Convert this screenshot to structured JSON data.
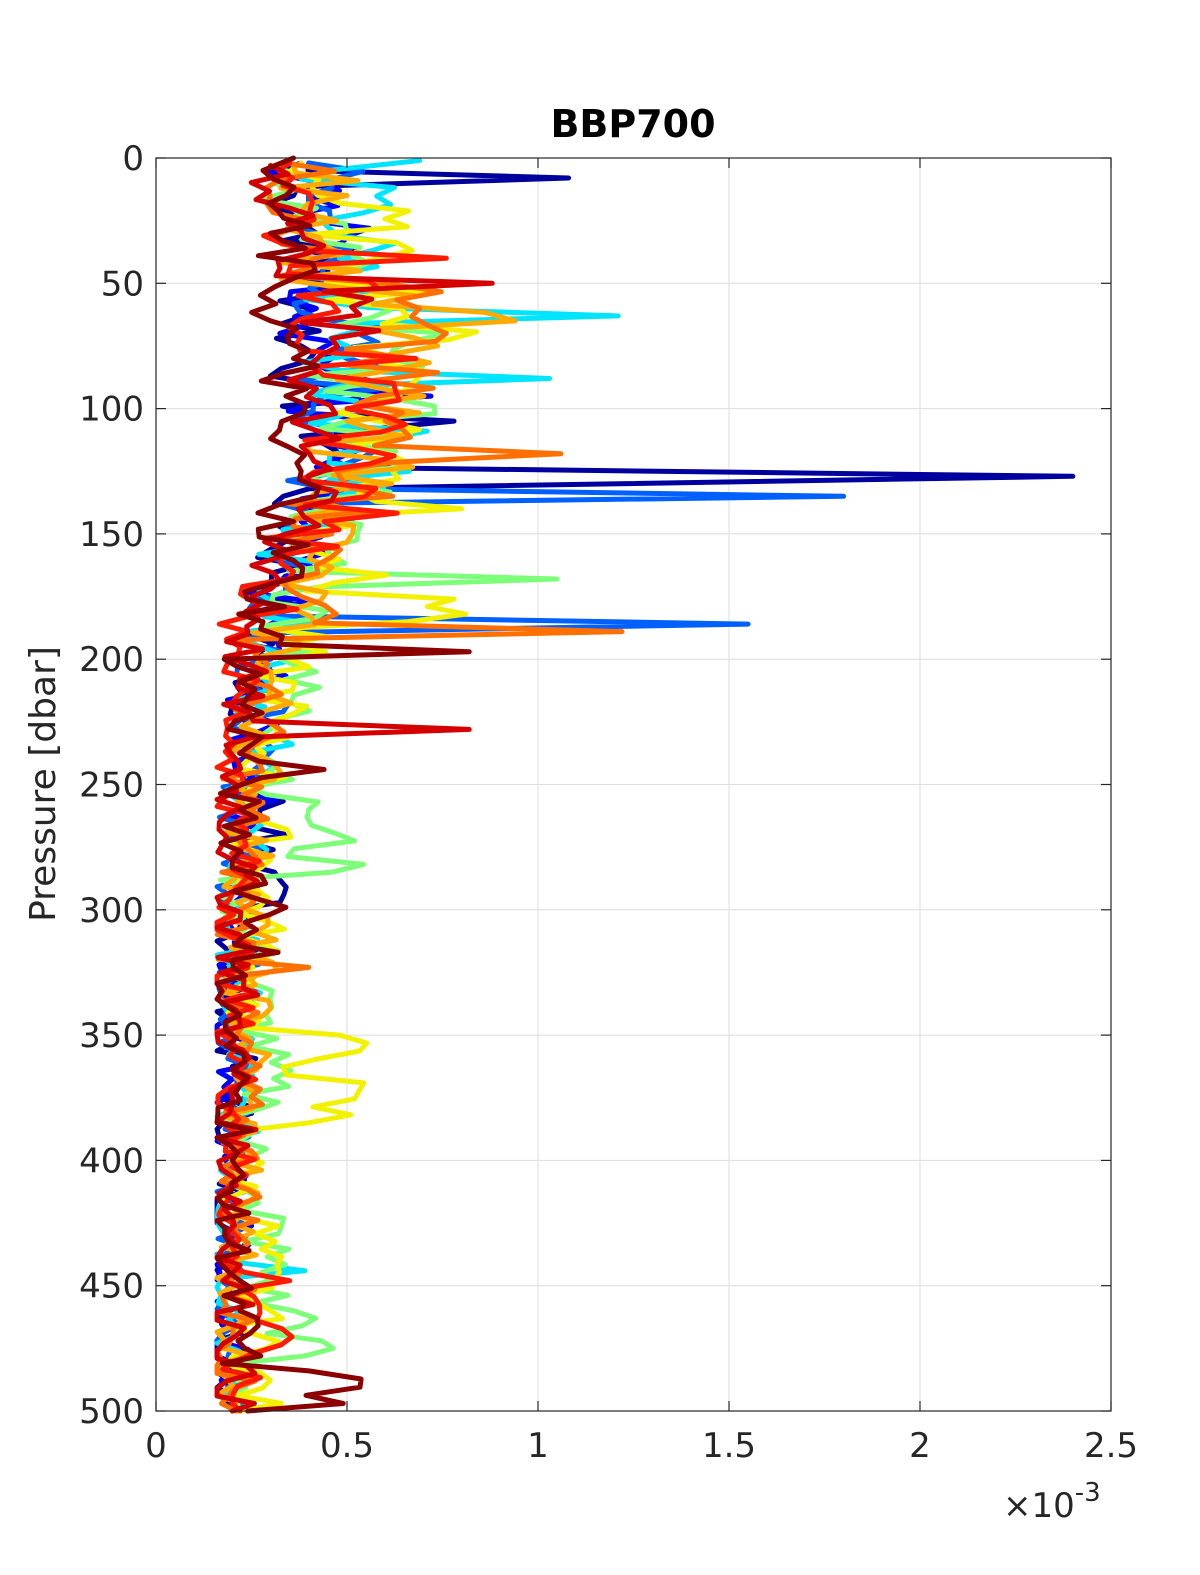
{
  "chart_data": {
    "type": "line",
    "title": "BBP700",
    "xlabel": "",
    "ylabel": "Pressure [dbar]",
    "x_multiplier_label": "×10",
    "x_multiplier_exponent": "-3",
    "x_scale": 0.001,
    "xlim": [
      0,
      0.0025
    ],
    "ylim": [
      0,
      500
    ],
    "y_reversed": true,
    "grid": true,
    "legend": "none",
    "x_ticks": [
      0,
      0.0005,
      0.001,
      0.0015,
      0.002,
      0.0025
    ],
    "x_tick_labels": [
      "0",
      "0.5",
      "1",
      "1.5",
      "2",
      "2.5"
    ],
    "y_ticks": [
      0,
      50,
      100,
      150,
      200,
      250,
      300,
      350,
      400,
      450,
      500
    ],
    "y_tick_labels": [
      "0",
      "50",
      "100",
      "150",
      "200",
      "250",
      "300",
      "350",
      "400",
      "450",
      "500"
    ],
    "colormap": [
      "#00008f",
      "#0000ff",
      "#0080ff",
      "#00ffff",
      "#80ff80",
      "#ffff00",
      "#ff8000",
      "#ff0000",
      "#800000"
    ],
    "series": [
      {
        "color": "#00009f",
        "pressure": [
          2,
          8,
          15,
          30,
          45,
          60,
          75,
          90,
          105,
          120,
          127,
          132,
          150,
          175,
          200,
          225,
          250,
          270,
          300,
          350,
          400,
          450,
          500
        ],
        "bbp": [
          0.0004,
          0.00108,
          0.00036,
          0.00042,
          0.00045,
          0.0004,
          0.00038,
          0.00042,
          0.00078,
          0.00046,
          0.0024,
          0.0004,
          0.00036,
          0.0003,
          0.00028,
          0.00024,
          0.00022,
          0.00034,
          0.0002,
          0.00021,
          0.0002,
          0.00019,
          0.0002
        ]
      },
      {
        "color": "#0000ff",
        "pressure": [
          2,
          10,
          25,
          40,
          60,
          80,
          95,
          110,
          130,
          145,
          170,
          190,
          210,
          235,
          265,
          285,
          310,
          340,
          380,
          420,
          460,
          500
        ],
        "bbp": [
          0.00038,
          0.00044,
          0.0004,
          0.0005,
          0.00042,
          0.00046,
          0.00072,
          0.00044,
          0.00042,
          0.00038,
          0.00032,
          0.0003,
          0.00026,
          0.00024,
          0.00026,
          0.00022,
          0.00021,
          0.00022,
          0.0002,
          0.00021,
          0.00019,
          0.0002
        ]
      },
      {
        "color": "#0060ff",
        "pressure": [
          2,
          12,
          30,
          55,
          80,
          110,
          135,
          150,
          170,
          186,
          200,
          230,
          260,
          300,
          350,
          400,
          450,
          500
        ],
        "bbp": [
          0.0004,
          0.00046,
          0.00042,
          0.00044,
          0.0005,
          0.00046,
          0.0018,
          0.0004,
          0.00034,
          0.00155,
          0.0003,
          0.00025,
          0.00023,
          0.00021,
          0.00022,
          0.0002,
          0.00019,
          0.0002
        ]
      },
      {
        "color": "#00e5ff",
        "pressure": [
          1,
          5,
          22,
          40,
          63,
          75,
          88,
          100,
          115,
          135,
          155,
          180,
          210,
          240,
          270,
          300,
          330,
          370,
          410,
          444,
          470,
          500
        ],
        "bbp": [
          0.00069,
          0.00045,
          0.00054,
          0.00048,
          0.00121,
          0.0005,
          0.00103,
          0.00052,
          0.0006,
          0.00046,
          0.0004,
          0.00034,
          0.0003,
          0.00027,
          0.00024,
          0.00022,
          0.00021,
          0.00022,
          0.0002,
          0.00039,
          0.00021,
          0.0002
        ]
      },
      {
        "color": "#7dff7a",
        "pressure": [
          3,
          20,
          45,
          70,
          90,
          120,
          140,
          168,
          190,
          205,
          230,
          260,
          285,
          310,
          345,
          380,
          420,
          460,
          478,
          500
        ],
        "bbp": [
          0.0003,
          0.00042,
          0.0005,
          0.00076,
          0.00055,
          0.0006,
          0.00045,
          0.00105,
          0.00038,
          0.00042,
          0.00028,
          0.0004,
          0.00046,
          0.00022,
          0.0003,
          0.00026,
          0.00022,
          0.00036,
          0.00039,
          0.00022
        ]
      },
      {
        "color": "#f2f200",
        "pressure": [
          2,
          18,
          40,
          60,
          85,
          105,
          125,
          140,
          160,
          176,
          185,
          200,
          225,
          250,
          280,
          320,
          350,
          385,
          420,
          460,
          500
        ],
        "bbp": [
          0.00038,
          0.00048,
          0.00058,
          0.00064,
          0.0007,
          0.00058,
          0.00062,
          0.0008,
          0.00048,
          0.00078,
          0.00066,
          0.00035,
          0.0003,
          0.00026,
          0.0003,
          0.00024,
          0.00048,
          0.0004,
          0.00023,
          0.0003,
          0.00022
        ]
      },
      {
        "color": "#ffaa00",
        "pressure": [
          3,
          15,
          35,
          55,
          65,
          85,
          105,
          120,
          140,
          160,
          180,
          205,
          230,
          260,
          300,
          330,
          370,
          410,
          450,
          490,
          500
        ],
        "bbp": [
          0.00036,
          0.0005,
          0.00044,
          0.00068,
          0.00094,
          0.0006,
          0.0005,
          0.00058,
          0.0005,
          0.0004,
          0.00036,
          0.0003,
          0.00028,
          0.00025,
          0.00024,
          0.00026,
          0.00023,
          0.00022,
          0.00021,
          0.0002,
          0.00021
        ]
      },
      {
        "color": "#ff7000",
        "pressure": [
          2,
          25,
          50,
          70,
          95,
          118,
          135,
          150,
          175,
          189,
          205,
          235,
          270,
          300,
          323,
          350,
          390,
          430,
          470,
          500
        ],
        "bbp": [
          0.00034,
          0.0004,
          0.0006,
          0.00076,
          0.00058,
          0.00106,
          0.00062,
          0.00046,
          0.00038,
          0.00122,
          0.00028,
          0.00025,
          0.00023,
          0.00022,
          0.0004,
          0.00021,
          0.00023,
          0.00022,
          0.0002,
          0.00021
        ]
      },
      {
        "color": "#ff1a00",
        "pressure": [
          2,
          14,
          28,
          40,
          58,
          80,
          100,
          122,
          145,
          165,
          183,
          195,
          215,
          240,
          265,
          290,
          320,
          355,
          390,
          425,
          448,
          480,
          500
        ],
        "bbp": [
          0.00035,
          0.0004,
          0.00036,
          0.00076,
          0.00046,
          0.00068,
          0.0005,
          0.00056,
          0.00044,
          0.00036,
          0.00024,
          0.00022,
          0.00021,
          0.0002,
          0.00021,
          0.00022,
          0.0002,
          0.00021,
          0.00022,
          0.0002,
          0.00035,
          0.00021,
          0.00022
        ]
      },
      {
        "color": "#d40000",
        "pressure": [
          3,
          20,
          38,
          50,
          72,
          92,
          112,
          130,
          150,
          172,
          190,
          208,
          228,
          250,
          280,
          310,
          340,
          375,
          410,
          445,
          470,
          500
        ],
        "bbp": [
          0.0003,
          0.00035,
          0.0004,
          0.00088,
          0.00046,
          0.00042,
          0.00048,
          0.0004,
          0.00034,
          0.0003,
          0.00024,
          0.00022,
          0.00082,
          0.00021,
          0.0002,
          0.00022,
          0.00021,
          0.0002,
          0.00021,
          0.0002,
          0.00021,
          0.0002
        ]
      },
      {
        "color": "#8b0000",
        "pressure": [
          0,
          5,
          15,
          30,
          48,
          65,
          80,
          95,
          112,
          125,
          145,
          170,
          185,
          197,
          215,
          244,
          260,
          280,
          299,
          320,
          345,
          370,
          400,
          430,
          460,
          484,
          497,
          500
        ],
        "bbp": [
          0.00036,
          0.00028,
          0.00034,
          0.0003,
          0.00036,
          0.0003,
          0.00036,
          0.00034,
          0.0003,
          0.00038,
          0.00036,
          0.0003,
          0.00028,
          0.00082,
          0.00024,
          0.00044,
          0.00022,
          0.0002,
          0.00034,
          0.0002,
          0.00018,
          0.00022,
          0.0002,
          0.00018,
          0.00022,
          0.0004,
          0.00049,
          0.00024
        ]
      }
    ]
  }
}
